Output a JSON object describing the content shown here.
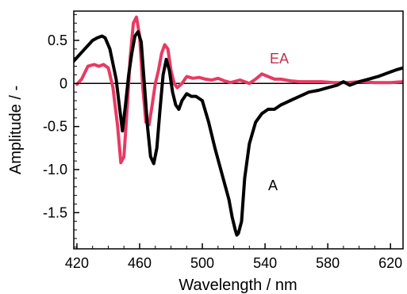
{
  "chart_data": {
    "type": "line",
    "xlabel": "Wavelength / nm",
    "ylabel": "Amplitude / -",
    "xlim": [
      418,
      628
    ],
    "ylim": [
      -1.92,
      0.84
    ],
    "xticks": [
      420,
      460,
      500,
      540,
      580,
      620
    ],
    "yticks": [
      0.5,
      0,
      -0.5,
      -1.0,
      -1.5
    ],
    "ytick_labels": [
      "0.5",
      "0",
      "-0.5",
      "-1.0",
      "-1.5"
    ],
    "zero_line": true,
    "grid": false,
    "series": [
      {
        "name": "A",
        "color": "#000000",
        "x": [
          418,
          425,
          430,
          433,
          436,
          438,
          441,
          445,
          447,
          449,
          451,
          453,
          455,
          457,
          459,
          461,
          463,
          465,
          467,
          469,
          471,
          473,
          475,
          477,
          479,
          481,
          483,
          485,
          487,
          490,
          493,
          496,
          500,
          504,
          508,
          511,
          514,
          517,
          519,
          521,
          522,
          523,
          525,
          527,
          530,
          534,
          538,
          542,
          546,
          550,
          556,
          562,
          568,
          574,
          580,
          586,
          590,
          594,
          600,
          606,
          612,
          618,
          624,
          628
        ],
        "y": [
          0.26,
          0.4,
          0.5,
          0.53,
          0.55,
          0.53,
          0.4,
          0.05,
          -0.25,
          -0.55,
          -0.25,
          0.1,
          0.35,
          0.55,
          0.6,
          0.48,
          0.0,
          -0.5,
          -0.85,
          -0.93,
          -0.75,
          -0.3,
          0.1,
          0.28,
          0.15,
          -0.1,
          -0.25,
          -0.3,
          -0.2,
          -0.12,
          -0.15,
          -0.15,
          -0.2,
          -0.45,
          -0.75,
          -0.95,
          -1.15,
          -1.35,
          -1.55,
          -1.7,
          -1.76,
          -1.74,
          -1.6,
          -1.1,
          -0.7,
          -0.45,
          -0.35,
          -0.3,
          -0.3,
          -0.25,
          -0.2,
          -0.15,
          -0.1,
          -0.08,
          -0.05,
          -0.02,
          0.02,
          -0.02,
          0.02,
          0.05,
          0.08,
          0.12,
          0.16,
          0.18
        ]
      },
      {
        "name": "EA",
        "color": "#e83a63",
        "x": [
          420,
          423,
          427,
          431,
          434,
          437,
          440,
          443,
          446,
          448,
          450,
          452,
          454,
          456,
          458,
          460,
          462,
          464,
          466,
          468,
          470,
          472,
          474,
          476,
          478,
          480,
          482,
          484,
          487,
          490,
          494,
          498,
          502,
          506,
          510,
          514,
          518,
          524,
          530,
          534,
          538,
          542,
          546,
          550,
          556,
          562,
          568,
          576,
          584,
          592,
          600,
          610,
          620,
          628
        ],
        "y": [
          -0.01,
          0.05,
          0.2,
          0.22,
          0.2,
          0.22,
          0.18,
          -0.05,
          -0.5,
          -0.92,
          -0.85,
          -0.3,
          0.3,
          0.7,
          0.77,
          0.55,
          -0.05,
          -0.45,
          -0.48,
          -0.25,
          0.0,
          0.15,
          0.35,
          0.45,
          0.4,
          0.15,
          0.0,
          -0.05,
          0.0,
          0.08,
          0.06,
          0.07,
          0.05,
          0.04,
          0.06,
          0.03,
          0.01,
          0.04,
          0.0,
          0.05,
          0.11,
          0.08,
          0.05,
          0.05,
          0.03,
          0.02,
          0.02,
          0.02,
          0.01,
          0.01,
          0.02,
          0.01,
          0.01,
          0.02
        ]
      }
    ]
  }
}
